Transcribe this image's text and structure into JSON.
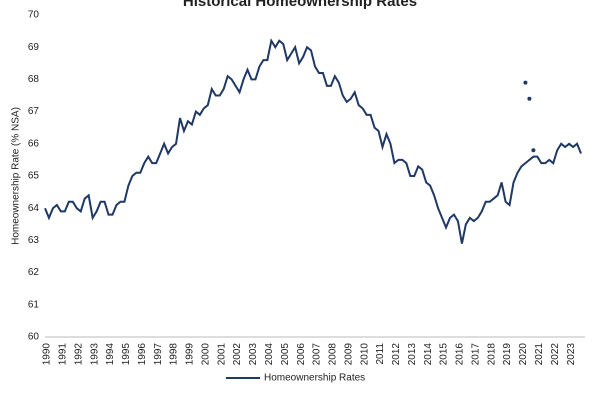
{
  "chart_data": {
    "type": "line",
    "title": "Historical Homeownership Rates",
    "y_label": "Homeownership Rate (% NSA)",
    "categories": [
      "1990",
      null,
      null,
      null,
      "1991",
      null,
      null,
      null,
      "1992",
      null,
      null,
      null,
      "1993",
      null,
      null,
      null,
      "1994",
      null,
      null,
      null,
      "1995",
      null,
      null,
      null,
      "1996",
      null,
      null,
      null,
      "1997",
      null,
      null,
      null,
      "1998",
      null,
      null,
      null,
      "1999",
      null,
      null,
      null,
      "2000",
      null,
      null,
      null,
      "2001",
      null,
      null,
      null,
      "2002",
      null,
      null,
      null,
      "2003",
      null,
      null,
      null,
      "2004",
      null,
      null,
      null,
      "2005",
      null,
      null,
      null,
      "2006",
      null,
      null,
      null,
      "2007",
      null,
      null,
      null,
      "2008",
      null,
      null,
      null,
      "2009",
      null,
      null,
      null,
      "2010",
      null,
      null,
      null,
      "2011",
      null,
      null,
      null,
      "2012",
      null,
      null,
      null,
      "2013",
      null,
      null,
      null,
      "2014",
      null,
      null,
      null,
      "2015",
      null,
      null,
      null,
      "2016",
      null,
      null,
      null,
      "2017",
      null,
      null,
      null,
      "2018",
      null,
      null,
      null,
      "2019",
      null,
      null,
      null,
      "2020",
      null,
      null,
      null,
      "2021",
      null,
      null,
      null,
      "2022",
      null,
      null,
      null,
      "2023",
      null,
      null,
      null
    ],
    "series": [
      {
        "name": "Homeownership Rates",
        "color": "#1f3864",
        "mode": "line",
        "values": [
          64.0,
          63.7,
          64.0,
          64.1,
          63.9,
          63.9,
          64.2,
          64.2,
          64.0,
          63.9,
          64.3,
          64.4,
          63.7,
          63.9,
          64.2,
          64.2,
          63.8,
          63.8,
          64.1,
          64.2,
          64.2,
          64.7,
          65.0,
          65.1,
          65.1,
          65.4,
          65.6,
          65.4,
          65.4,
          65.7,
          66.0,
          65.7,
          65.9,
          66.0,
          66.8,
          66.4,
          66.7,
          66.6,
          67.0,
          66.9,
          67.1,
          67.2,
          67.7,
          67.5,
          67.5,
          67.7,
          68.1,
          68.0,
          67.8,
          67.6,
          68.0,
          68.3,
          68.0,
          68.0,
          68.4,
          68.6,
          68.6,
          69.2,
          69.0,
          69.2,
          69.1,
          68.6,
          68.8,
          69.0,
          68.5,
          68.7,
          69.0,
          68.9,
          68.4,
          68.2,
          68.2,
          67.8,
          67.8,
          68.1,
          67.9,
          67.5,
          67.3,
          67.4,
          67.6,
          67.2,
          67.1,
          66.9,
          66.9,
          66.5,
          66.4,
          65.9,
          66.3,
          66.0,
          65.4,
          65.5,
          65.5,
          65.4,
          65.0,
          65.0,
          65.3,
          65.2,
          64.8,
          64.7,
          64.4,
          64.0,
          63.7,
          63.4,
          63.7,
          63.8,
          63.6,
          62.9,
          63.5,
          63.7,
          63.6,
          63.7,
          63.9,
          64.2,
          64.2,
          64.3,
          64.4,
          64.8,
          64.2,
          64.1,
          64.8,
          65.1,
          65.3,
          65.4,
          65.5,
          65.6,
          65.6,
          65.4,
          65.4,
          65.5,
          65.4,
          65.8,
          66.0,
          65.9,
          66.0,
          65.9,
          66.0,
          65.7
        ]
      },
      {
        "color": "#1f3864",
        "mode": "markers",
        "values": [
          null,
          null,
          null,
          null,
          null,
          null,
          null,
          null,
          null,
          null,
          null,
          null,
          null,
          null,
          null,
          null,
          null,
          null,
          null,
          null,
          null,
          null,
          null,
          null,
          null,
          null,
          null,
          null,
          null,
          null,
          null,
          null,
          null,
          null,
          null,
          null,
          null,
          null,
          null,
          null,
          null,
          null,
          null,
          null,
          null,
          null,
          null,
          null,
          null,
          null,
          null,
          null,
          null,
          null,
          null,
          null,
          null,
          null,
          null,
          null,
          null,
          null,
          null,
          null,
          null,
          null,
          null,
          null,
          null,
          null,
          null,
          null,
          null,
          null,
          null,
          null,
          null,
          null,
          null,
          null,
          null,
          null,
          null,
          null,
          null,
          null,
          null,
          null,
          null,
          null,
          null,
          null,
          null,
          null,
          null,
          null,
          null,
          null,
          null,
          null,
          null,
          null,
          null,
          null,
          null,
          null,
          null,
          null,
          null,
          null,
          null,
          null,
          null,
          null,
          null,
          null,
          null,
          null,
          null,
          null,
          null,
          67.9,
          67.4,
          65.8,
          null,
          null,
          null,
          null,
          null,
          null,
          null,
          null,
          null,
          null,
          null,
          null
        ]
      }
    ],
    "ylim": [
      60,
      70
    ],
    "yticks": [
      60,
      61,
      62,
      63,
      64,
      65,
      66,
      67,
      68,
      69,
      70
    ],
    "grid": false,
    "legend": "bottom"
  }
}
